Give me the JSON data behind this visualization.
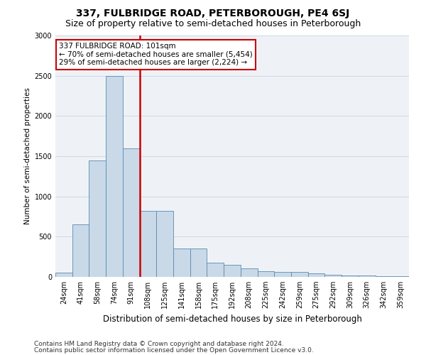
{
  "title": "337, FULBRIDGE ROAD, PETERBOROUGH, PE4 6SJ",
  "subtitle": "Size of property relative to semi-detached houses in Peterborough",
  "xlabel": "Distribution of semi-detached houses by size in Peterborough",
  "ylabel": "Number of semi-detached properties",
  "categories": [
    "24sqm",
    "41sqm",
    "58sqm",
    "74sqm",
    "91sqm",
    "108sqm",
    "125sqm",
    "141sqm",
    "158sqm",
    "175sqm",
    "192sqm",
    "208sqm",
    "225sqm",
    "242sqm",
    "259sqm",
    "275sqm",
    "292sqm",
    "309sqm",
    "326sqm",
    "342sqm",
    "359sqm"
  ],
  "values": [
    50,
    650,
    1450,
    2500,
    1600,
    820,
    820,
    350,
    350,
    175,
    150,
    110,
    70,
    65,
    60,
    40,
    30,
    20,
    15,
    10,
    10
  ],
  "bar_color": "#c9d9e8",
  "bar_edge_color": "#5a8ab0",
  "vline_color": "#cc0000",
  "vline_position": 4.5,
  "annotation_text": "337 FULBRIDGE ROAD: 101sqm\n← 70% of semi-detached houses are smaller (5,454)\n29% of semi-detached houses are larger (2,224) →",
  "annotation_box_color": "#ffffff",
  "annotation_box_edge_color": "#cc0000",
  "ylim": [
    0,
    3000
  ],
  "yticks": [
    0,
    500,
    1000,
    1500,
    2000,
    2500,
    3000
  ],
  "grid_color": "#d0d8e4",
  "background_color": "#eef2f7",
  "footer_line1": "Contains HM Land Registry data © Crown copyright and database right 2024.",
  "footer_line2": "Contains public sector information licensed under the Open Government Licence v3.0.",
  "title_fontsize": 10,
  "subtitle_fontsize": 9,
  "xlabel_fontsize": 8.5,
  "ylabel_fontsize": 7.5,
  "tick_fontsize": 7,
  "annotation_fontsize": 7.5,
  "footer_fontsize": 6.5
}
